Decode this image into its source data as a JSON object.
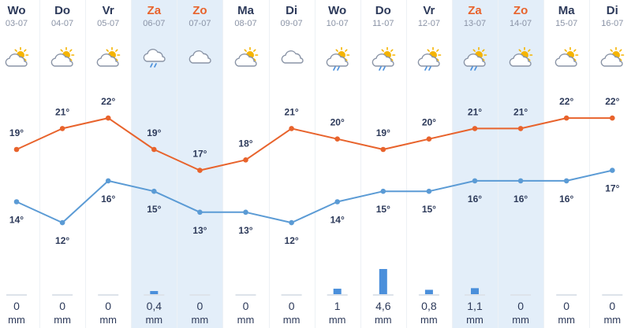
{
  "days": [
    {
      "name": "Wo",
      "date": "03-07",
      "weekend": false,
      "icon": "partly-sunny-icon",
      "precip": "0",
      "unit": "mm"
    },
    {
      "name": "Do",
      "date": "04-07",
      "weekend": false,
      "icon": "partly-sunny-icon",
      "precip": "0",
      "unit": "mm"
    },
    {
      "name": "Vr",
      "date": "05-07",
      "weekend": false,
      "icon": "partly-sunny-icon",
      "precip": "0",
      "unit": "mm"
    },
    {
      "name": "Za",
      "date": "06-07",
      "weekend": true,
      "icon": "cloud-rain-icon",
      "precip": "0,4",
      "unit": "mm"
    },
    {
      "name": "Zo",
      "date": "07-07",
      "weekend": true,
      "icon": "cloud-icon",
      "precip": "0",
      "unit": "mm"
    },
    {
      "name": "Ma",
      "date": "08-07",
      "weekend": false,
      "icon": "partly-sunny-icon",
      "precip": "0",
      "unit": "mm"
    },
    {
      "name": "Di",
      "date": "09-07",
      "weekend": false,
      "icon": "cloud-icon",
      "precip": "0",
      "unit": "mm"
    },
    {
      "name": "Wo",
      "date": "10-07",
      "weekend": false,
      "icon": "sun-cloud-rain-icon",
      "precip": "1",
      "unit": "mm"
    },
    {
      "name": "Do",
      "date": "11-07",
      "weekend": false,
      "icon": "sun-cloud-rain-icon",
      "precip": "4,6",
      "unit": "mm"
    },
    {
      "name": "Vr",
      "date": "12-07",
      "weekend": false,
      "icon": "sun-cloud-rain-icon",
      "precip": "0,8",
      "unit": "mm"
    },
    {
      "name": "Za",
      "date": "13-07",
      "weekend": true,
      "icon": "sun-cloud-rain-icon",
      "precip": "1,1",
      "unit": "mm"
    },
    {
      "name": "Zo",
      "date": "14-07",
      "weekend": true,
      "icon": "partly-sunny-icon",
      "precip": "0",
      "unit": "mm"
    },
    {
      "name": "Ma",
      "date": "15-07",
      "weekend": false,
      "icon": "partly-sunny-icon",
      "precip": "0",
      "unit": "mm"
    },
    {
      "name": "Di",
      "date": "16-07",
      "weekend": false,
      "icon": "partly-sunny-icon",
      "precip": "0",
      "unit": "mm"
    }
  ],
  "colors": {
    "max": "#e8632c",
    "min": "#5b9bd5",
    "precip": "#4a8fdb",
    "weekend": "#e3eef9"
  },
  "chart_data": {
    "type": "line",
    "x": [
      "03-07",
      "04-07",
      "05-07",
      "06-07",
      "07-07",
      "08-07",
      "09-07",
      "10-07",
      "11-07",
      "12-07",
      "13-07",
      "14-07",
      "15-07",
      "16-07"
    ],
    "series": [
      {
        "name": "",
        "color": "#e8632c",
        "values": [
          19,
          21,
          22,
          19,
          17,
          18,
          21,
          20,
          19,
          20,
          21,
          21,
          22,
          22
        ]
      },
      {
        "name": "",
        "color": "#5b9bd5",
        "values": [
          14,
          12,
          16,
          15,
          13,
          13,
          12,
          14,
          15,
          15,
          16,
          16,
          16,
          17
        ]
      }
    ],
    "labels_max": [
      "19°",
      "21°",
      "22°",
      "19°",
      "17°",
      "18°",
      "21°",
      "20°",
      "19°",
      "20°",
      "21°",
      "21°",
      "22°",
      "22°"
    ],
    "labels_min": [
      "14°",
      "12°",
      "16°",
      "15°",
      "13°",
      "13°",
      "12°",
      "14°",
      "15°",
      "15°",
      "16°",
      "16°",
      "16°",
      "17°"
    ],
    "precipitation": [
      0,
      0,
      0,
      0.4,
      0,
      0,
      0,
      1,
      4.6,
      0.8,
      1.1,
      0,
      0,
      0
    ],
    "precip_unit": "mm",
    "grid": false,
    "legend": "none"
  }
}
